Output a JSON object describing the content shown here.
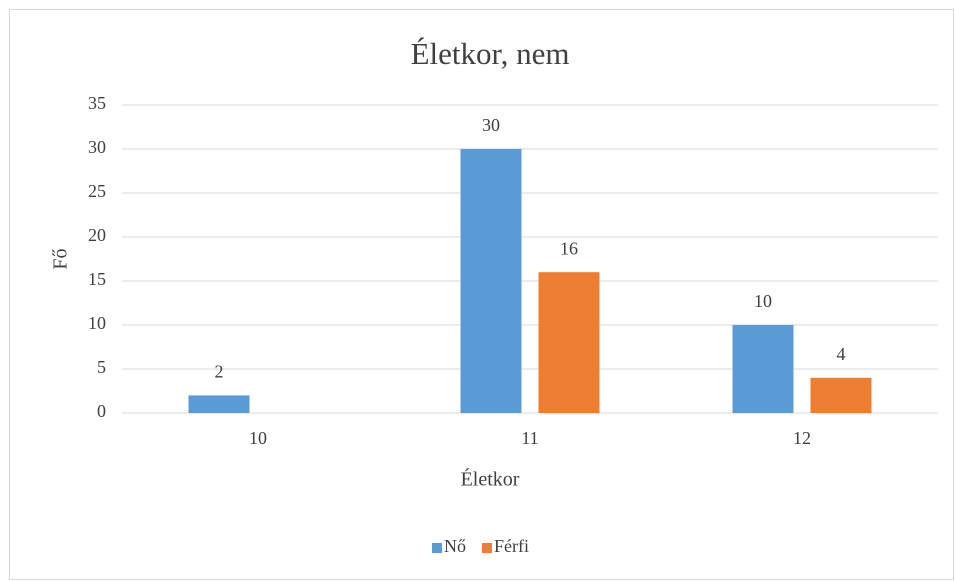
{
  "chart_data": {
    "type": "bar",
    "title": "Életkor, nem",
    "x_label": "Életkor",
    "y_label": "Fő",
    "categories": [
      "10",
      "11",
      "12"
    ],
    "series": [
      {
        "name": "Nő",
        "color": "#5b9bd5",
        "values": [
          2,
          30,
          10
        ]
      },
      {
        "name": "Férfi",
        "color": "#ed7d31",
        "values": [
          null,
          16,
          4
        ]
      }
    ],
    "ylim": [
      0,
      35
    ],
    "yticks": [
      0,
      5,
      10,
      15,
      20,
      25,
      30,
      35
    ],
    "grid": true,
    "legend": "bottom"
  }
}
